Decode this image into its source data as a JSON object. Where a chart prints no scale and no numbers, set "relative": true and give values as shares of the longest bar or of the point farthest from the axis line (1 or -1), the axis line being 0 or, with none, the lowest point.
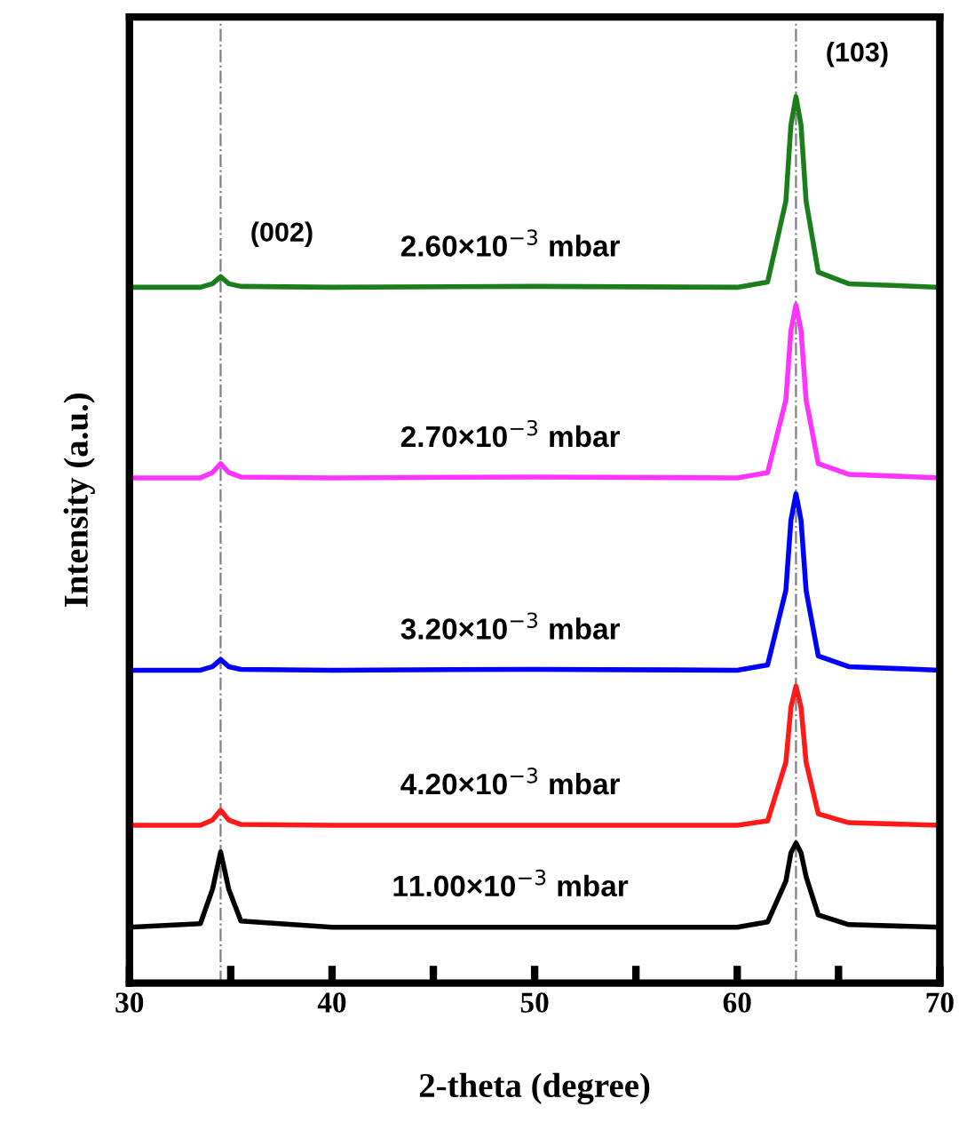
{
  "chart_data": {
    "type": "line",
    "relative": true,
    "xlabel": "2-theta (degree)",
    "ylabel": "Intensity (a.u.)",
    "tick_labels": "x",
    "grid": false,
    "marker": "none",
    "line_style": "solid",
    "x": [
      30,
      33.5,
      34.1,
      34.5,
      34.9,
      35.5,
      40,
      50,
      60,
      61.5,
      62.4,
      62.65,
      62.9,
      63.15,
      63.4,
      64.0,
      65.5,
      70
    ],
    "xlim": [
      30,
      70
    ],
    "xticks": [
      30,
      {
        "value": 35,
        "label": null
      },
      40,
      {
        "value": 45,
        "label": null
      },
      50,
      {
        "value": 55,
        "label": null
      },
      60,
      {
        "value": 65,
        "label": null
      },
      70
    ],
    "series": [
      {
        "name": "2.60×10$^{−3}$ mbar",
        "color": "#1a7f1a",
        "values": [
          0.785,
          0.785,
          0.789,
          0.797,
          0.789,
          0.786,
          0.785,
          0.786,
          0.785,
          0.791,
          0.882,
          0.968,
          1,
          0.968,
          0.882,
          0.802,
          0.789,
          0.785
        ]
      },
      {
        "name": "2.70×10$^{−3}$ mbar",
        "color": "#ff33ff",
        "values": [
          0.57,
          0.57,
          0.576,
          0.586,
          0.576,
          0.571,
          0.57,
          0.571,
          0.57,
          0.576,
          0.658,
          0.736,
          0.765,
          0.736,
          0.658,
          0.586,
          0.574,
          0.57
        ]
      },
      {
        "name": "3.20×10$^{−3}$ mbar",
        "color": "#0000ff",
        "values": [
          0.353,
          0.353,
          0.357,
          0.365,
          0.357,
          0.354,
          0.353,
          0.354,
          0.353,
          0.359,
          0.443,
          0.522,
          0.552,
          0.522,
          0.443,
          0.369,
          0.357,
          0.353
        ]
      },
      {
        "name": "4.20×10$^{−3}$ mbar",
        "color": "#ff1a1a",
        "values": [
          0.178,
          0.178,
          0.184,
          0.195,
          0.184,
          0.179,
          0.178,
          0.178,
          0.178,
          0.183,
          0.249,
          0.311,
          0.335,
          0.311,
          0.249,
          0.191,
          0.181,
          0.178
        ]
      },
      {
        "name": "11.00×10$^{−3}$ mbar",
        "color": "#000000",
        "values": [
          0.063,
          0.067,
          0.106,
          0.148,
          0.106,
          0.07,
          0.063,
          0.063,
          0.063,
          0.069,
          0.115,
          0.147,
          0.158,
          0.147,
          0.12,
          0.077,
          0.066,
          0.063
        ]
      }
    ],
    "ref_lines": [
      {
        "axis": "x",
        "value": 34.5,
        "label": null,
        "color": "#808080",
        "line_style": "dashdot"
      },
      {
        "axis": "x",
        "value": 62.9,
        "label": null,
        "color": "#808080",
        "line_style": "dashdot"
      }
    ],
    "annotations": [
      {
        "text": "(002)",
        "x": 34.5,
        "y": 0.797
      },
      {
        "text": "(103)",
        "x": 62.9,
        "y": 1
      }
    ]
  }
}
